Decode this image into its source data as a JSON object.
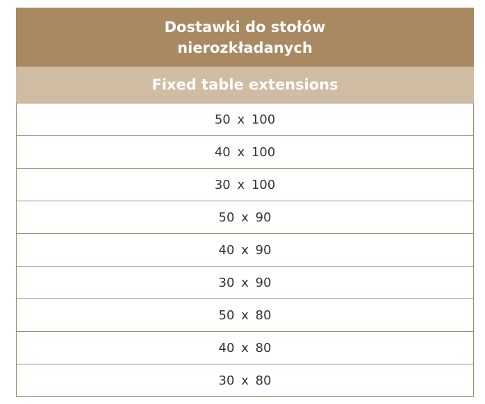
{
  "table": {
    "title": "Dostawki do stołów nierozkładanych",
    "subtitle": "Fixed table extensions",
    "rows": [
      "50 x 100",
      "40 x 100",
      "30 x 100",
      "50 x 90",
      "40 x 90",
      "30 x 90",
      "50 x 80",
      "40 x 80",
      "30 x 80"
    ],
    "colors": {
      "header": "#a98962",
      "subheader": "#d0bca3",
      "border": "#9c8c68"
    }
  }
}
